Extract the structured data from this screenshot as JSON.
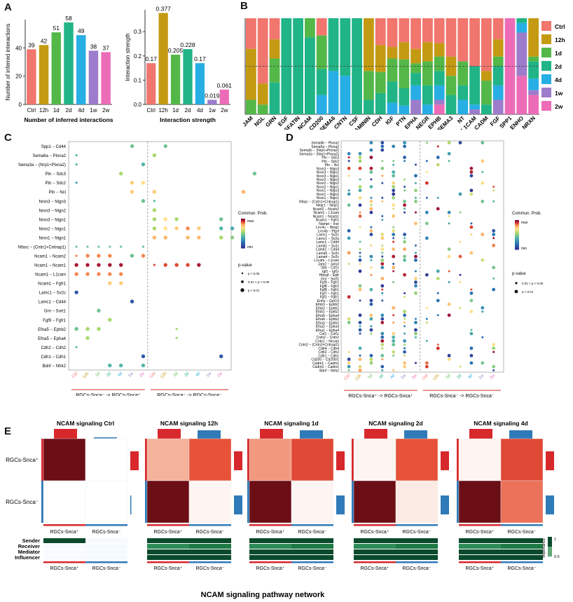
{
  "panels": {
    "A": "A",
    "B": "B",
    "C": "C",
    "D": "D",
    "E": "E"
  },
  "colors": {
    "ctrl": "#F0766E",
    "h12": "#C49A12",
    "d1": "#53B848",
    "d2": "#20B486",
    "d4": "#27AEE4",
    "w1": "#9C7CCB",
    "w2": "#EC6CB8",
    "hm_dark": "#6B0E16",
    "hm_mid": "#E6533A",
    "hm_light": "#F3A68C",
    "hm_pale": "#FCEBE5",
    "sender": "#D7282C",
    "receiver": "#2F7AB8"
  },
  "chart_data": [
    {
      "type": "bar",
      "id": "A1",
      "categories": [
        "Ctrl",
        "12h",
        "1d",
        "2d",
        "4d",
        "1w",
        "2w"
      ],
      "values": [
        39,
        42,
        51,
        58,
        49,
        38,
        37
      ],
      "title": "",
      "xlabel": "Number of inferred interactions",
      "ylabel": "Number of inferred interactions",
      "ylim": [
        0,
        60
      ],
      "yticks": [
        0,
        20,
        40
      ]
    },
    {
      "type": "bar",
      "id": "A2",
      "categories": [
        "Ctrl",
        "12h",
        "1d",
        "2d",
        "4d",
        "1w",
        "2w"
      ],
      "values": [
        0.17,
        0.377,
        0.205,
        0.228,
        0.17,
        0.019,
        0.061
      ],
      "labels": [
        "0.17",
        "0.377",
        "0.205",
        "0.228",
        "0.17",
        "0.019",
        "0.061"
      ],
      "title": "",
      "xlabel": "Interaction strength",
      "ylabel": "Interaction strength",
      "ylim": [
        0,
        0.39
      ],
      "yticks": [
        "0.0",
        "0.1",
        "0.2",
        "0.3"
      ]
    },
    {
      "type": "bar",
      "id": "B",
      "stacked": true,
      "categories": [
        "JAM",
        "NGL",
        "GRN",
        "EGF",
        "VISFATIN",
        "NCAM",
        "CD200",
        "SEMA6",
        "CNTN",
        "CSF",
        "LAMININ",
        "CDH",
        "IGF",
        "PTN",
        "EPHA",
        "NEGR",
        "EPHB",
        "SEMA3",
        "NT",
        "L1CAM",
        "CADM",
        "FGF",
        "SPP1",
        "ENHO",
        "NRXN"
      ],
      "legend": [
        "Ctrl",
        "12h",
        "1d",
        "2d",
        "4d",
        "1w",
        "2w"
      ],
      "series": [
        {
          "name": "Ctrl",
          "values": [
            0.32,
            0.68,
            0.22,
            0,
            0,
            0,
            0.18,
            0,
            0,
            0,
            0,
            0.28,
            0.3,
            0.25,
            0.32,
            0.25,
            0.26,
            0.4,
            0.45,
            0.5,
            0.55,
            0.22,
            0,
            0,
            0
          ]
        },
        {
          "name": "12h",
          "values": [
            0.53,
            0.22,
            0.2,
            0,
            0,
            0,
            0,
            0,
            0,
            0,
            0.55,
            0.28,
            0.12,
            0.18,
            0.15,
            0.2,
            0.14,
            0.2,
            0,
            0,
            0.1,
            0.18,
            0,
            0,
            0.4
          ]
        },
        {
          "name": "1d",
          "values": [
            0.15,
            0.1,
            0.25,
            0,
            0,
            0.2,
            0.35,
            0,
            0,
            0,
            0.3,
            0.22,
            0.24,
            0.3,
            0.1,
            0.25,
            0.15,
            0.2,
            0.25,
            0,
            0.25,
            0.1,
            0,
            0,
            0.05
          ]
        },
        {
          "name": "2d",
          "values": [
            0,
            0,
            0.33,
            1.0,
            1.0,
            0.8,
            0.27,
            0.55,
            0.6,
            1.0,
            0.15,
            0.22,
            0.22,
            0.18,
            0.13,
            0.2,
            0.15,
            0.2,
            0.15,
            0.4,
            0.1,
            0.2,
            0,
            0.05,
            0.18
          ]
        },
        {
          "name": "4d",
          "values": [
            0,
            0,
            0,
            0,
            0,
            0,
            0.2,
            0.45,
            0.4,
            0,
            0,
            0,
            0.12,
            0.09,
            0.15,
            0.1,
            0.15,
            0,
            0.15,
            0.05,
            0,
            0.15,
            0,
            0.1,
            0.12
          ]
        },
        {
          "name": "1w",
          "values": [
            0,
            0,
            0,
            0,
            0,
            0,
            0,
            0,
            0,
            0,
            0,
            0,
            0,
            0,
            0.15,
            0,
            0.05,
            0,
            0,
            0.05,
            0,
            0.15,
            0,
            0.45,
            0.05
          ]
        },
        {
          "name": "2w",
          "values": [
            0,
            0,
            0,
            0,
            0,
            0,
            0,
            0,
            0,
            0,
            0,
            0,
            0,
            0,
            0,
            0,
            0.1,
            0,
            0,
            0,
            0,
            0,
            1.0,
            0.4,
            0.2
          ]
        }
      ],
      "ylim": [
        0,
        1
      ],
      "dashed_line": 0.5
    },
    {
      "type": "scatter",
      "id": "C",
      "x_categories": [
        "Ctrl",
        "12h",
        "1d",
        "2d",
        "4d",
        "1w",
        "2w",
        "Ctrl",
        "12h",
        "1d",
        "2d",
        "4d",
        "1w",
        "2w"
      ],
      "y_categories": [
        "Spp1 − Cd44",
        "Sema6a − Plxna2",
        "Sema3a − (Nrp1+Plxna2)",
        "Ptn − Sdc3",
        "Ptn − Sdc2",
        "Ptn − Ncl",
        "Nrxn3 − Nlgn3",
        "Nrxn3 − Nlgn2",
        "Nrxn3 − Nlgn1",
        "Nrxn2 − Nlgn1",
        "Nrxn1 − Nlgn1",
        "Nfasc − (Cntn1+Cntnap1)",
        "Ncam1 − Ncam2",
        "Ncam1 − Ncam1",
        "Ncam1 − L1cam",
        "Ncam1 − Fgfr1",
        "Lamc1 − Sv2c",
        "Lamc1 − Cd44",
        "Grn − Sort1",
        "Fgf9 − Fgfr1",
        "Efna5 − Ephb2",
        "Efna5 − Epha4",
        "Cdh2 − Cdh2",
        "Cdh1 − Cdh1",
        "Bdnf − Ntrk2"
      ],
      "group_labels": [
        "RGCs-Snca⁻ -> RGCs-Snca⁺",
        "RGCs-Snca⁻ -> RGCs-Snca⁻"
      ],
      "colorbar": {
        "title": "Commun. Prob.",
        "max": "max",
        "min": "min"
      },
      "size_legend": {
        "title": "p-value",
        "items": [
          "p < 0.05",
          "0.01 < p < 0.05",
          "p < 0.01"
        ]
      },
      "points": [
        [
          0,
          5,
          0.45,
          2
        ],
        [
          0,
          8,
          0.45,
          2
        ],
        [
          1,
          0,
          0.4,
          1
        ],
        [
          1,
          7,
          0.55,
          2
        ],
        [
          2,
          0,
          0.4,
          1
        ],
        [
          2,
          6,
          0.4,
          2
        ],
        [
          3,
          4,
          0.55,
          2
        ],
        [
          3,
          16,
          0.45,
          2
        ],
        [
          4,
          0,
          0.35,
          1
        ],
        [
          4,
          5,
          0.75,
          2
        ],
        [
          4,
          6,
          0.7,
          2
        ],
        [
          5,
          5,
          0.75,
          2
        ],
        [
          5,
          7,
          0.75,
          2
        ],
        [
          5,
          15,
          0.8,
          2
        ],
        [
          6,
          6,
          0.45,
          2
        ],
        [
          6,
          7,
          0.4,
          1
        ],
        [
          7,
          7,
          0.55,
          2
        ],
        [
          8,
          7,
          0.55,
          2
        ],
        [
          8,
          8,
          0.7,
          2
        ],
        [
          8,
          9,
          0.55,
          2
        ],
        [
          8,
          13,
          0.45,
          2
        ],
        [
          8,
          19,
          0.45,
          2
        ],
        [
          8,
          22,
          0.35,
          2
        ],
        [
          9,
          7,
          0.55,
          2
        ],
        [
          9,
          8,
          0.7,
          2
        ],
        [
          9,
          9,
          0.75,
          2
        ],
        [
          9,
          10,
          0.85,
          2
        ],
        [
          9,
          11,
          0.75,
          2
        ],
        [
          9,
          13,
          0.4,
          2
        ],
        [
          9,
          14,
          0.35,
          2
        ],
        [
          9,
          15,
          0.8,
          2
        ],
        [
          9,
          24,
          0.4,
          2
        ],
        [
          10,
          7,
          0.8,
          2
        ],
        [
          10,
          8,
          0.8,
          2
        ],
        [
          10,
          10,
          0.8,
          2
        ],
        [
          10,
          11,
          0.8,
          2
        ],
        [
          10,
          13,
          0.55,
          2
        ],
        [
          10,
          14,
          0.5,
          2
        ],
        [
          10,
          15,
          0.8,
          2
        ],
        [
          11,
          0,
          0.45,
          1
        ],
        [
          11,
          1,
          0.45,
          1
        ],
        [
          11,
          2,
          0.45,
          1
        ],
        [
          11,
          3,
          0.45,
          1
        ],
        [
          11,
          4,
          0.45,
          1
        ],
        [
          11,
          6,
          0.45,
          1
        ],
        [
          12,
          0,
          0.85,
          1
        ],
        [
          12,
          1,
          0.85,
          2
        ],
        [
          12,
          2,
          0.85,
          2
        ],
        [
          12,
          3,
          0.85,
          2
        ],
        [
          12,
          5,
          0.45,
          2
        ],
        [
          12,
          6,
          0.85,
          2
        ],
        [
          13,
          0,
          0.97,
          2
        ],
        [
          13,
          1,
          0.97,
          2
        ],
        [
          13,
          2,
          0.97,
          2
        ],
        [
          13,
          3,
          0.97,
          2
        ],
        [
          13,
          4,
          0.97,
          2
        ],
        [
          13,
          7,
          0.9,
          1
        ],
        [
          13,
          8,
          0.9,
          2
        ],
        [
          13,
          9,
          0.9,
          2
        ],
        [
          13,
          10,
          0.9,
          2
        ],
        [
          13,
          11,
          0.97,
          2
        ],
        [
          14,
          0,
          0.85,
          2
        ],
        [
          14,
          1,
          0.85,
          2
        ],
        [
          14,
          2,
          0.85,
          2
        ],
        [
          14,
          3,
          0.85,
          2
        ],
        [
          14,
          4,
          0.85,
          2
        ],
        [
          15,
          3,
          0.75,
          2
        ],
        [
          15,
          4,
          0.75,
          2
        ],
        [
          16,
          0,
          0.1,
          2
        ],
        [
          17,
          5,
          0.1,
          2
        ],
        [
          18,
          2,
          0.45,
          2
        ],
        [
          19,
          3,
          0.55,
          2
        ],
        [
          20,
          0,
          0.45,
          2
        ],
        [
          20,
          1,
          0.55,
          2
        ],
        [
          20,
          2,
          0.55,
          2
        ],
        [
          20,
          9,
          0.55,
          1
        ],
        [
          21,
          1,
          0.55,
          2
        ],
        [
          21,
          9,
          0.55,
          1
        ],
        [
          22,
          0,
          0.45,
          1
        ],
        [
          23,
          6,
          0.1,
          2
        ],
        [
          23,
          13,
          0.1,
          2
        ],
        [
          24,
          3,
          0.4,
          2
        ],
        [
          24,
          4,
          0.4,
          2
        ],
        [
          24,
          6,
          0.4,
          2
        ]
      ]
    },
    {
      "type": "scatter",
      "id": "D",
      "x_categories": [
        "Ctrl",
        "12h",
        "1d",
        "2d",
        "4d",
        "1w",
        "2w",
        "Ctrl",
        "12h",
        "1d",
        "2d",
        "4d",
        "1w",
        "2w"
      ],
      "y_categories": [
        "Sema6b − Plxna2",
        "Sema6a − Plxna2",
        "Sema3c − (Nrp1+Plxna2)",
        "Sema3a − (Nrp1+Plxna2)",
        "Ptn − Sdc3",
        "Ptn − Sdc2",
        "Ptn − Ncl",
        "Nrxn3 − Nlgn3",
        "Nrxn3 − Nlgn2",
        "Nrxn3 − Nlgn1",
        "Nrxn2 − Nlgn3",
        "Nrxn2 − Nlgn2",
        "Nrxn2 − Nlgn1",
        "Nrxn1 − Nlgn3",
        "Nrxn1 − Nlgn2",
        "Nrxn1 − Nlgn1",
        "Nfasc − (Cntn1+Cntnap1)",
        "Negr1 − Negr1",
        "Ncam2 − Ncam2",
        "Ncam1 − L1cam",
        "Ncam1 − Ncam1",
        "Ncam1 − Fgfr1",
        "Nampt − Insr",
        "Lrrc4c − Ntng1",
        "Lrrc4b − Ptprf",
        "Lamc1 − Sv2c",
        "Lamc1 − Sv2a",
        "Lamc1 − Cd44",
        "Lamb1 − Sv2c",
        "Lamb1 − Cd44",
        "Lama5 − Sv2c",
        "Lama4 − Sv2c",
        "L1cam − L1cam",
        "Jam2 − Jam3",
        "Il34 − Csf1r",
        "Igf1 − Igf1r",
        "Hbegf − Egfr",
        "Grn − Sort1",
        "Fgf9 − Fgfr1",
        "Fgf8 − Fgfr2",
        "Fgf8 − Fgfr1",
        "Fgf7 − Fgfr1",
        "Fgf1 − Fgfr1",
        "Enho − Gpr19",
        "Efnb3 − Ephb2",
        "Efnb2 − Ephb2",
        "Efnb1 − Ephb2",
        "Efna5 − Epha4",
        "Efna4 − Ephb2",
        "Efna3 − Ephb2",
        "Efna2 − Epha4",
        "Efna1 − Epha4",
        "Csf1 − Csf1r",
        "Cntn2 − Cntn2",
        "Cntn1 − Nrcam",
        "Cntn2 − (Cntn2+Cntnap2)",
        "Cdh4 − Cdh4",
        "Cdh2 − Cdh2",
        "Cdh1 − Cdh1",
        "Cd200 − Cd200r1",
        "Cadm1 − Cadm1",
        "Cadm3 − Cadm1",
        "Bdnf − Ntrk2"
      ],
      "y_label_overrides": {
        "0": "Sema6b − Plxna2",
        "1": "Sema6a − Plxna2",
        "2": "Sema3c − (Nrp1+Plxna2)",
        "3": "Sema3a − (Nrp1+Plxna2)"
      },
      "group_labels": [
        "RGCs-Snca⁺ -> RGCs-Snca⁺",
        "RGCs-Snca⁻ -> RGCs-Snca⁻"
      ],
      "colorbar": {
        "title": "Commun. Prob.",
        "max": "max",
        "min": "min"
      },
      "size_legend": {
        "title": "p-value",
        "items": [
          "0.01 < p < 0.05",
          "p < 0.01"
        ]
      },
      "seed": 7
    },
    {
      "type": "heatmap",
      "id": "E",
      "title": "NCAM signaling pathway network",
      "legend_title": "Importance",
      "legend_max": "1",
      "legend_min": "0.6",
      "row_labels": [
        "RGCs-Snca⁺",
        "RGCs-Snca⁻"
      ],
      "col_labels": [
        "RGCs-Snca⁺",
        "RGCs-Snca⁻"
      ],
      "role_labels": [
        "Sender",
        "Receiver",
        "Mediator",
        "Influencer"
      ],
      "panels": [
        {
          "title": "NCAM signaling Ctrl",
          "matrix": [
            [
              1.0,
              0.0
            ],
            [
              0.0,
              0.0
            ]
          ],
          "top": [
            1.0,
            0.0
          ],
          "right": [
            1.0,
            0.0
          ]
        },
        {
          "title": "NCAM signaling 12h",
          "matrix": [
            [
              0.35,
              0.72
            ],
            [
              1.0,
              0.05
            ]
          ],
          "top": [
            1.0,
            0.6
          ],
          "right": [
            1.0,
            0.7
          ]
        },
        {
          "title": "NCAM signaling 1d",
          "matrix": [
            [
              0.45,
              0.75
            ],
            [
              1.0,
              0.05
            ]
          ],
          "top": [
            1.0,
            0.6
          ],
          "right": [
            1.0,
            0.7
          ]
        },
        {
          "title": "NCAM signaling 2d",
          "matrix": [
            [
              0.05,
              0.72
            ],
            [
              1.0,
              0.1
            ]
          ],
          "top": [
            1.0,
            0.6
          ],
          "right": [
            1.0,
            0.7
          ]
        },
        {
          "title": "NCAM signaling 4d",
          "matrix": [
            [
              0.05,
              0.75
            ],
            [
              1.0,
              0.6
            ]
          ],
          "top": [
            1.0,
            0.7
          ],
          "right": [
            1.0,
            0.7
          ]
        }
      ]
    }
  ]
}
